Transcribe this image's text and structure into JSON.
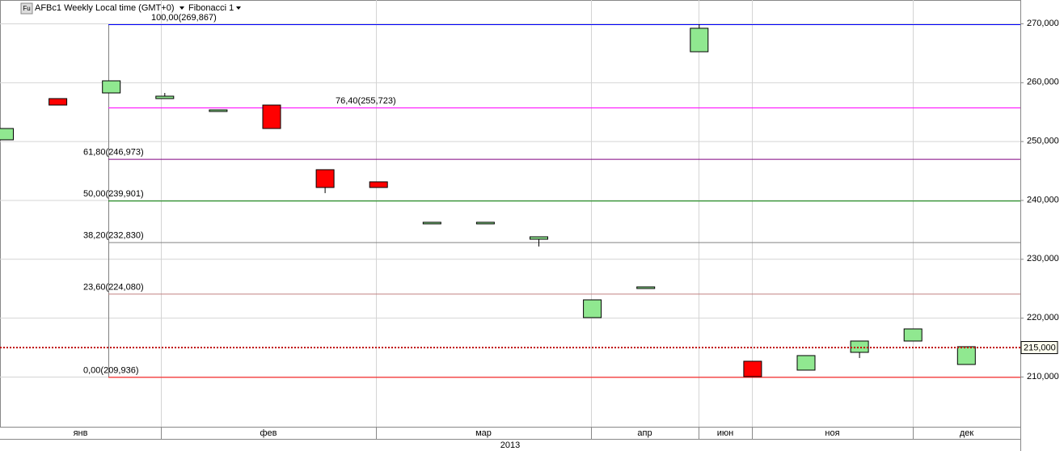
{
  "chart_data": {
    "type": "candlestick",
    "title": "AFBc1 Weekly Local time (GMT+0)",
    "icon": "Fu",
    "study": "Fibonacci 1",
    "categories": [
      null,
      null,
      null,
      null,
      null,
      null,
      null,
      null,
      null,
      null,
      null,
      null,
      null,
      null,
      null,
      null,
      null,
      null,
      null
    ],
    "open": [
      250230,
      257230,
      258190,
      257230,
      255040,
      256130,
      245150,
      243090,
      235950,
      235950,
      233340,
      220020,
      224960,
      265190,
      212610,
      211100,
      214120,
      216040,
      212060
    ],
    "high": [
      252150,
      257230,
      260250,
      258190,
      255310,
      256130,
      245150,
      243090,
      236220,
      236220,
      233750,
      223040,
      225240,
      269870,
      212610,
      213570,
      216040,
      218100,
      215080
    ],
    "low": [
      250230,
      256130,
      258190,
      257230,
      255040,
      252150,
      241170,
      242130,
      235950,
      235950,
      232100,
      220020,
      224960,
      265190,
      209940,
      211100,
      213160,
      216040,
      212060
    ],
    "close": [
      252150,
      256130,
      260250,
      257640,
      255310,
      252150,
      242130,
      242130,
      236220,
      236220,
      233750,
      223040,
      225240,
      269180,
      210000,
      213570,
      216040,
      218100,
      215080
    ],
    "up_color": "#90e890",
    "down_color": "#ff0000",
    "ylim": [
      201480,
      273980
    ],
    "yticks": [
      {
        "value": 210000,
        "label": "210,000"
      },
      {
        "value": 220000,
        "label": "220,000"
      },
      {
        "value": 230000,
        "label": "230,000"
      },
      {
        "value": 240000,
        "label": "240,000"
      },
      {
        "value": 250000,
        "label": "250,000"
      },
      {
        "value": 260000,
        "label": "260,000"
      },
      {
        "value": 270000,
        "label": "270,000"
      }
    ],
    "grid": true,
    "fib_levels": [
      {
        "value": 269867,
        "label": "100,00(269,867)",
        "color": "#0000ff"
      },
      {
        "value": 255723,
        "label": "76,40(255,723)",
        "color": "#ff00ff"
      },
      {
        "value": 246973,
        "label": "61,80(246,973)",
        "color": "#800080"
      },
      {
        "value": 239901,
        "label": "50,00(239,901)",
        "color": "#008000"
      },
      {
        "value": 232830,
        "label": "38,20(232,830)",
        "color": "#808080"
      },
      {
        "value": 224080,
        "label": "23,60(224,080)",
        "color": "#c08080"
      },
      {
        "value": 209936,
        "label": "0,00(209,936)",
        "color": "#ff0000"
      }
    ],
    "current_price": {
      "value": 215000,
      "label": "215,000",
      "color": "#c00000"
    },
    "months": [
      "янв",
      "фев",
      "мар",
      "апр",
      "июн",
      "ноя",
      "дек"
    ],
    "year": "2013"
  }
}
